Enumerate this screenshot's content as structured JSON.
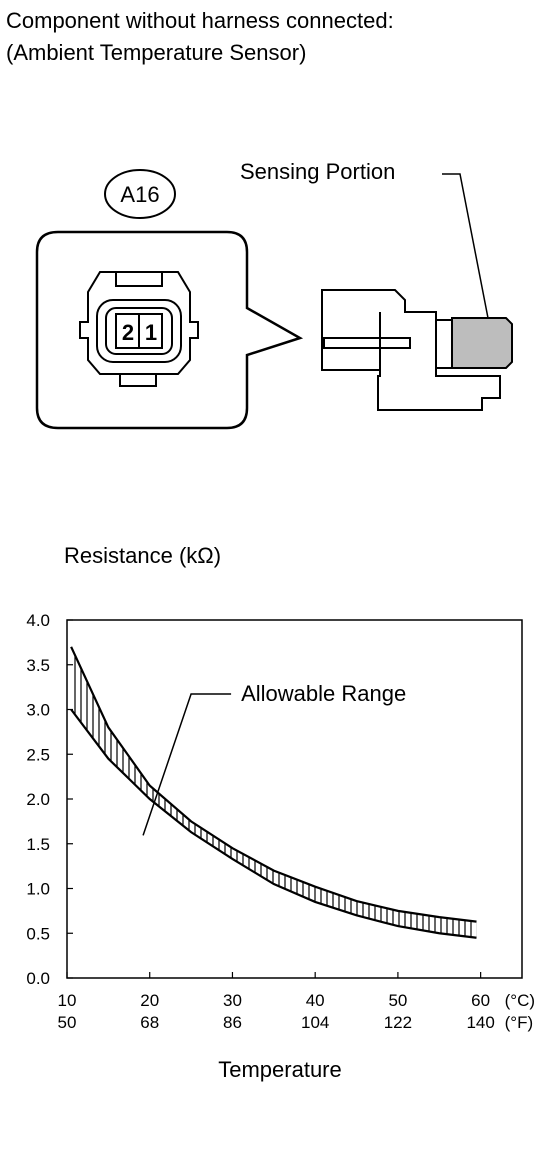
{
  "header": {
    "line1": "Component without harness connected:",
    "line2": "(Ambient Temperature Sensor)"
  },
  "connector": {
    "id": "A16",
    "pin_left": "2",
    "pin_right": "1",
    "sensing_label": "Sensing Portion"
  },
  "chart_data": {
    "type": "band",
    "y_title": "Resistance (kΩ)",
    "x_title": "Temperature",
    "annotation": "Allowable Range",
    "x": [
      10.5,
      15,
      20,
      25,
      30,
      35,
      40,
      45,
      50,
      55,
      59.5
    ],
    "upper": [
      3.7,
      2.8,
      2.15,
      1.75,
      1.45,
      1.2,
      1.02,
      0.86,
      0.75,
      0.68,
      0.63
    ],
    "lower": [
      3.0,
      2.45,
      2.0,
      1.63,
      1.33,
      1.05,
      0.85,
      0.7,
      0.58,
      0.5,
      0.45
    ],
    "xlim": [
      10,
      65
    ],
    "ylim": [
      0,
      4
    ],
    "xticks": [
      10,
      20,
      30,
      40,
      50,
      60
    ],
    "xticks_f": [
      {
        "value": 10,
        "label": "50"
      },
      {
        "value": 20,
        "label": "68"
      },
      {
        "value": 30,
        "label": "86"
      },
      {
        "value": 40,
        "label": "104"
      },
      {
        "value": 50,
        "label": "122"
      },
      {
        "value": 60,
        "label": "140"
      }
    ],
    "x_unit": "(°C)",
    "x_unit_f": "(°F)",
    "yticks": [
      {
        "value": 0,
        "label": "0.0"
      },
      {
        "value": 0.5,
        "label": "0.5"
      },
      {
        "value": 1,
        "label": "1.0"
      },
      {
        "value": 1.5,
        "label": "1.5"
      },
      {
        "value": 2,
        "label": "2.0"
      },
      {
        "value": 2.5,
        "label": "2.5"
      },
      {
        "value": 3,
        "label": "3.0"
      },
      {
        "value": 3.5,
        "label": "3.5"
      },
      {
        "value": 4,
        "label": "4.0"
      }
    ],
    "color": "#000000"
  }
}
